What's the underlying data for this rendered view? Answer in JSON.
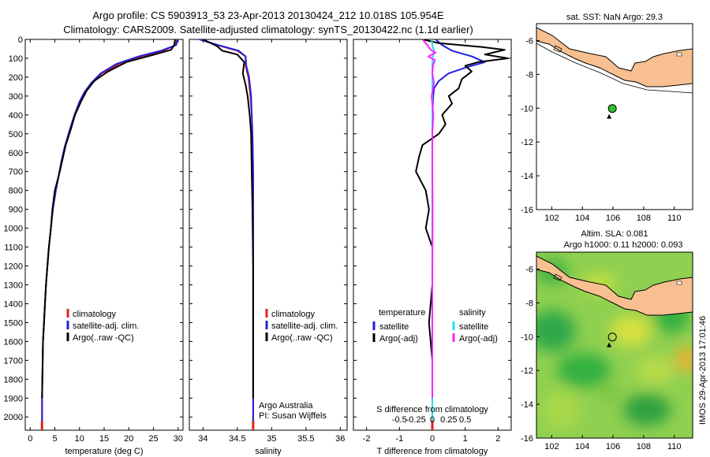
{
  "header": {
    "line1": "Argo profile: CS 5903913_53 23-Apr-2013 20130424_212 10.018S 105.954E",
    "line2": "Climatology: CARS2009. Satellite-adjusted climatology: synTS_20130422.nc (1.1d earlier)"
  },
  "side_text": "IMOS 29-Apr-2013 17:01:46",
  "colors": {
    "climatology": "#e02020",
    "satellite": "#2020e0",
    "argo": "#000000",
    "satellite_diff_s": "#20e0f0",
    "argo_diff_s": "#ff20ff",
    "land": "#f8c090"
  },
  "chart_data": [
    {
      "type": "line",
      "panel": "temperature",
      "xlabel": "temperature (deg C)",
      "xlim": [
        -1,
        31
      ],
      "xticks": [
        0,
        5,
        10,
        15,
        20,
        25,
        30
      ],
      "ylim": [
        2070,
        0
      ],
      "yticks": [
        0,
        100,
        200,
        300,
        400,
        500,
        600,
        700,
        800,
        900,
        1000,
        1100,
        1200,
        1300,
        1400,
        1500,
        1600,
        1700,
        1800,
        1900,
        2000
      ],
      "legend": [
        "climatology",
        "satellite-adj. clim.",
        "Argo(..raw -QC)"
      ],
      "series": [
        {
          "name": "climatology",
          "color": "#e02020",
          "x": [
            29.8,
            29.5,
            27,
            23,
            18,
            14.5,
            12.5,
            11,
            10,
            9,
            8,
            7,
            6.3,
            5.8,
            5.2,
            4.6,
            4.2,
            3.8,
            3.5,
            3.2,
            3.0,
            2.8,
            2.6,
            2.5,
            2.4,
            2.4
          ],
          "y": [
            0,
            30,
            60,
            90,
            130,
            180,
            230,
            280,
            330,
            400,
            480,
            570,
            650,
            720,
            800,
            900,
            1000,
            1100,
            1200,
            1300,
            1400,
            1500,
            1600,
            1750,
            1900,
            2050
          ]
        },
        {
          "name": "satellite-adj. clim.",
          "color": "#2020e0",
          "x": [
            29.9,
            29.6,
            26.5,
            22,
            17.5,
            14.3,
            12.4,
            11,
            10,
            9,
            8,
            7,
            6.3,
            5.8,
            5.2,
            4.6,
            4.2,
            3.8,
            3.5,
            3.2,
            3.0,
            2.8,
            2.6,
            2.5,
            2.4,
            2.4
          ],
          "y": [
            0,
            30,
            60,
            90,
            130,
            180,
            230,
            280,
            330,
            400,
            480,
            570,
            650,
            720,
            800,
            900,
            1000,
            1100,
            1200,
            1300,
            1400,
            1500,
            1600,
            1750,
            1900,
            2050
          ]
        },
        {
          "name": "Argo(..raw -QC)",
          "color": "#000000",
          "x": [
            29.4,
            29.2,
            28.6,
            24.5,
            19.5,
            15.8,
            13,
            11.5,
            10.3,
            9.1,
            8.2,
            7.2,
            6.6,
            6.0,
            5.0,
            4.5,
            4.2,
            3.8,
            3.5,
            3.2,
            3.0,
            2.8,
            2.6,
            2.5,
            2.4
          ],
          "y": [
            0,
            30,
            55,
            85,
            120,
            170,
            220,
            270,
            330,
            400,
            480,
            560,
            630,
            700,
            800,
            900,
            1000,
            1100,
            1200,
            1300,
            1400,
            1500,
            1600,
            1750,
            1900
          ]
        }
      ]
    },
    {
      "type": "line",
      "panel": "salinity",
      "xlabel": "salinity",
      "xlim": [
        33.8,
        36.1
      ],
      "xticks": [
        34,
        34.5,
        35,
        35.5,
        36
      ],
      "ylim": [
        2070,
        0
      ],
      "legend": [
        "climatology",
        "satellite-adj. clim.",
        "Argo(..raw -QC)"
      ],
      "annotation": [
        "Argo Australia",
        "PI: Susan Wijffels"
      ],
      "series": [
        {
          "name": "climatology",
          "color": "#e02020",
          "x": [
            33.95,
            34.2,
            34.5,
            34.62,
            34.62,
            34.66,
            34.69,
            34.71,
            34.72,
            34.73,
            34.73,
            34.73,
            34.73,
            34.73,
            34.73
          ],
          "y": [
            0,
            30,
            60,
            90,
            140,
            200,
            300,
            400,
            500,
            700,
            900,
            1200,
            1500,
            1800,
            2050
          ]
        },
        {
          "name": "satellite-adj. clim.",
          "color": "#2020e0",
          "x": [
            33.95,
            34.22,
            34.52,
            34.62,
            34.63,
            34.67,
            34.7,
            34.71,
            34.72,
            34.73,
            34.73,
            34.73,
            34.73,
            34.73,
            34.73
          ],
          "y": [
            0,
            30,
            60,
            90,
            140,
            200,
            300,
            400,
            500,
            700,
            900,
            1200,
            1500,
            1800,
            2050
          ]
        },
        {
          "name": "Argo(..raw -QC)",
          "color": "#000000",
          "x": [
            34.0,
            34.2,
            34.28,
            34.5,
            34.6,
            34.58,
            34.62,
            34.65,
            34.68,
            34.7,
            34.71,
            34.72,
            34.73,
            34.73,
            34.73
          ],
          "y": [
            0,
            35,
            60,
            80,
            120,
            180,
            240,
            300,
            400,
            500,
            700,
            900,
            1200,
            1500,
            1900
          ]
        }
      ]
    },
    {
      "type": "line",
      "panel": "difference",
      "xlabel": "T difference from climatology",
      "xlabel_top": "S difference from climatology",
      "xlim": [
        -2.4,
        2.4
      ],
      "xticks": [
        -2,
        -1,
        0,
        1,
        2
      ],
      "s_ticks": [
        -0.5,
        -0.25,
        0,
        0.25,
        0.5
      ],
      "ylim": [
        2070,
        0
      ],
      "legend_left_title": "temperature",
      "legend_right_title": "salinity",
      "legend_left": [
        "satellite",
        "Argo(-adj)"
      ],
      "legend_right": [
        "satellite",
        "Argo(-adj)"
      ],
      "series": [
        {
          "name": "satellite T",
          "color": "#2020e0",
          "x": [
            0.1,
            0.3,
            0.6,
            1.2,
            1.6,
            1.0,
            0.5,
            0.2,
            0.05,
            0.02,
            0.0,
            0.0,
            0.0,
            0.0,
            0.0
          ],
          "y": [
            0,
            30,
            60,
            90,
            120,
            150,
            180,
            220,
            260,
            320,
            400,
            600,
            900,
            1400,
            2050
          ]
        },
        {
          "name": "Argo T",
          "color": "#000000",
          "x": [
            -0.3,
            0.2,
            1.5,
            2.2,
            1.6,
            2.3,
            1.4,
            1.0,
            1.2,
            0.9,
            0.8,
            0.5,
            0.6,
            0.3,
            0.4,
            0.2,
            -0.3,
            -0.4,
            -0.5,
            -0.2,
            -0.1,
            -0.2,
            0.0,
            0.0,
            -0.1,
            0.0,
            0.0
          ],
          "y": [
            0,
            20,
            40,
            55,
            80,
            100,
            120,
            140,
            170,
            210,
            260,
            300,
            340,
            400,
            450,
            500,
            560,
            620,
            700,
            800,
            900,
            1000,
            1100,
            1300,
            1500,
            1700,
            1900
          ]
        },
        {
          "name": "satellite S",
          "color": "#20e0f0",
          "x": [
            -0.02,
            0.0,
            0.05,
            0.02,
            0.0,
            0.0,
            0.0,
            0.0,
            0.0,
            0.0,
            0.0
          ],
          "y": [
            0,
            30,
            60,
            90,
            120,
            200,
            400,
            800,
            1200,
            1600,
            2050
          ]
        },
        {
          "name": "Argo S",
          "color": "#ff20ff",
          "x": [
            -0.3,
            -0.15,
            -0.05,
            0.1,
            -0.12,
            0.08,
            0.02,
            0.0,
            0.05,
            -0.02,
            0.03,
            0.0,
            0.0,
            0.01,
            0.0,
            0.0
          ],
          "y": [
            0,
            30,
            55,
            70,
            90,
            110,
            140,
            180,
            230,
            300,
            400,
            500,
            700,
            900,
            1300,
            1900
          ]
        }
      ]
    },
    {
      "type": "map",
      "panel": "sst",
      "title": "sat. SST: NaN Argo: 29.3",
      "xlim": [
        101,
        111.2
      ],
      "ylim": [
        -16,
        -5
      ],
      "xticks": [
        102,
        104,
        106,
        108,
        110
      ],
      "yticks": [
        -6,
        -8,
        -10,
        -12,
        -14,
        -16
      ],
      "profile_lon": 105.954,
      "profile_lat": -10.018,
      "marker_color": "#30c030"
    },
    {
      "type": "map",
      "panel": "sla",
      "title_line1": "Altim. SLA: 0.081",
      "title_line2": "Argo h1000: 0.11 h2000: 0.093",
      "xlim": [
        101,
        111.2
      ],
      "ylim": [
        -16,
        -5
      ],
      "xticks": [
        102,
        104,
        106,
        108,
        110
      ],
      "yticks": [
        -6,
        -8,
        -10,
        -12,
        -14,
        -16
      ],
      "profile_lon": 105.954,
      "profile_lat": -10.018
    }
  ]
}
